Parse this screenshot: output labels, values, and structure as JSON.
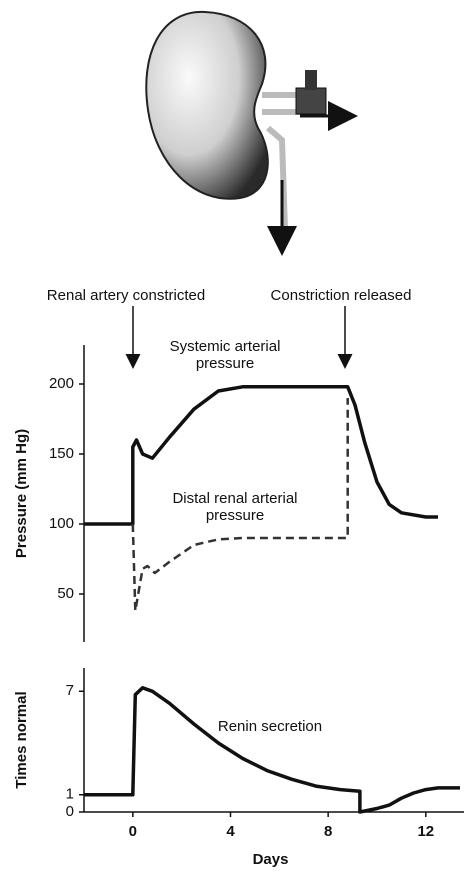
{
  "annotations": [
    "Renal artery constricted",
    "Constriction released"
  ],
  "chart_data": [
    {
      "type": "line",
      "ylabel": "Pressure (mm Hg)",
      "xlim": [
        -2,
        13.4
      ],
      "ylim": [
        20,
        230
      ],
      "yticks": [
        50,
        100,
        150,
        200
      ],
      "series": [
        {
          "name": "Systemic arterial pressure",
          "color": "#111111",
          "style": "solid",
          "x": [
            -2,
            0,
            0,
            0.15,
            0.4,
            0.8,
            1.5,
            2.5,
            3.5,
            4.5,
            6,
            7,
            8,
            8.8,
            9.1,
            9.5,
            10,
            10.5,
            11,
            12,
            12.5
          ],
          "values": [
            100,
            100,
            155,
            160,
            150,
            147,
            162,
            182,
            195,
            198,
            198,
            198,
            198,
            198,
            185,
            158,
            130,
            114,
            108,
            105,
            105
          ]
        },
        {
          "name": "Distal renal arterial pressure",
          "color": "#333333",
          "style": "dashed",
          "x": [
            0,
            0.1,
            0.4,
            0.6,
            0.9,
            1.5,
            2.5,
            3.5,
            4.5,
            6,
            8,
            8.8,
            8.8
          ],
          "values": [
            100,
            38,
            68,
            70,
            65,
            73,
            85,
            89,
            90,
            90,
            90,
            90,
            190
          ]
        }
      ]
    },
    {
      "type": "line",
      "ylabel": "Times normal",
      "xlabel": "Days",
      "xlim": [
        -2,
        13.4
      ],
      "ylim": [
        0,
        8
      ],
      "yticks": [
        0,
        1,
        7
      ],
      "xticks": [
        0,
        4,
        8,
        12
      ],
      "series": [
        {
          "name": "Renin secretion",
          "color": "#111111",
          "style": "solid",
          "x": [
            -2,
            0,
            0.1,
            0.4,
            0.8,
            1.5,
            2.5,
            3.5,
            4.5,
            5.5,
            6.5,
            7.5,
            8.5,
            9.3,
            9.3,
            10,
            10.5,
            11,
            11.5,
            12,
            12.5,
            13.4
          ],
          "values": [
            1,
            1,
            6.8,
            7.2,
            7.0,
            6.3,
            5.1,
            4.0,
            3.1,
            2.4,
            1.9,
            1.5,
            1.3,
            1.2,
            0,
            0.2,
            0.4,
            0.8,
            1.1,
            1.3,
            1.4,
            1.4
          ]
        }
      ]
    }
  ]
}
